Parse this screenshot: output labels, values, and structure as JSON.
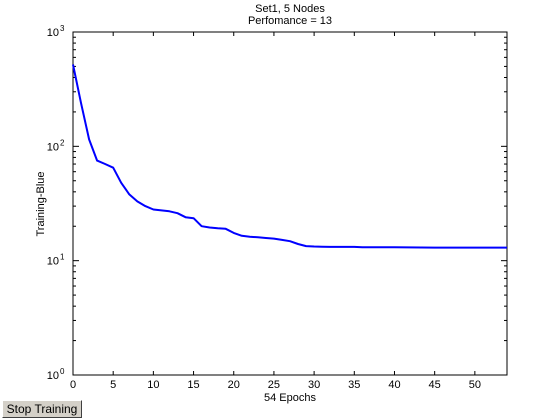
{
  "chart_data": {
    "type": "line",
    "title": [
      "Set1, 5 Nodes",
      "Perfomance = 13"
    ],
    "xlabel": "54 Epochs",
    "ylabel": "Training-Blue",
    "xlim": [
      0,
      54
    ],
    "ylim": [
      1,
      1000
    ],
    "yscale": "log",
    "grid": false,
    "x_ticks": [
      0,
      5,
      10,
      15,
      20,
      25,
      30,
      35,
      40,
      45,
      50
    ],
    "y_ticks": [
      {
        "value": 1,
        "base": "10",
        "exp": "0"
      },
      {
        "value": 10,
        "base": "10",
        "exp": "1"
      },
      {
        "value": 100,
        "base": "10",
        "exp": "2"
      },
      {
        "value": 1000,
        "base": "10",
        "exp": "3"
      }
    ],
    "series": [
      {
        "color": "#0000ff",
        "x": [
          0,
          1,
          2,
          3,
          4,
          5,
          6,
          7,
          8,
          9,
          10,
          11,
          12,
          13,
          14,
          15,
          16,
          17,
          18,
          19,
          20,
          21,
          22,
          23,
          24,
          25,
          26,
          27,
          28,
          29,
          30,
          31,
          32,
          33,
          34,
          35,
          36,
          40,
          45,
          50,
          54
        ],
        "y": [
          520,
          240,
          115,
          75,
          70,
          65,
          48,
          38,
          33,
          30,
          28,
          27.5,
          27,
          26,
          24,
          23.5,
          20,
          19.5,
          19.2,
          19,
          17.5,
          16.5,
          16.2,
          16,
          15.8,
          15.6,
          15.2,
          14.8,
          14,
          13.4,
          13.3,
          13.25,
          13.2,
          13.2,
          13.2,
          13.2,
          13.1,
          13.1,
          13.0,
          13.0,
          13.0
        ]
      }
    ]
  },
  "controls": {
    "stop_button_label": "Stop Training"
  }
}
